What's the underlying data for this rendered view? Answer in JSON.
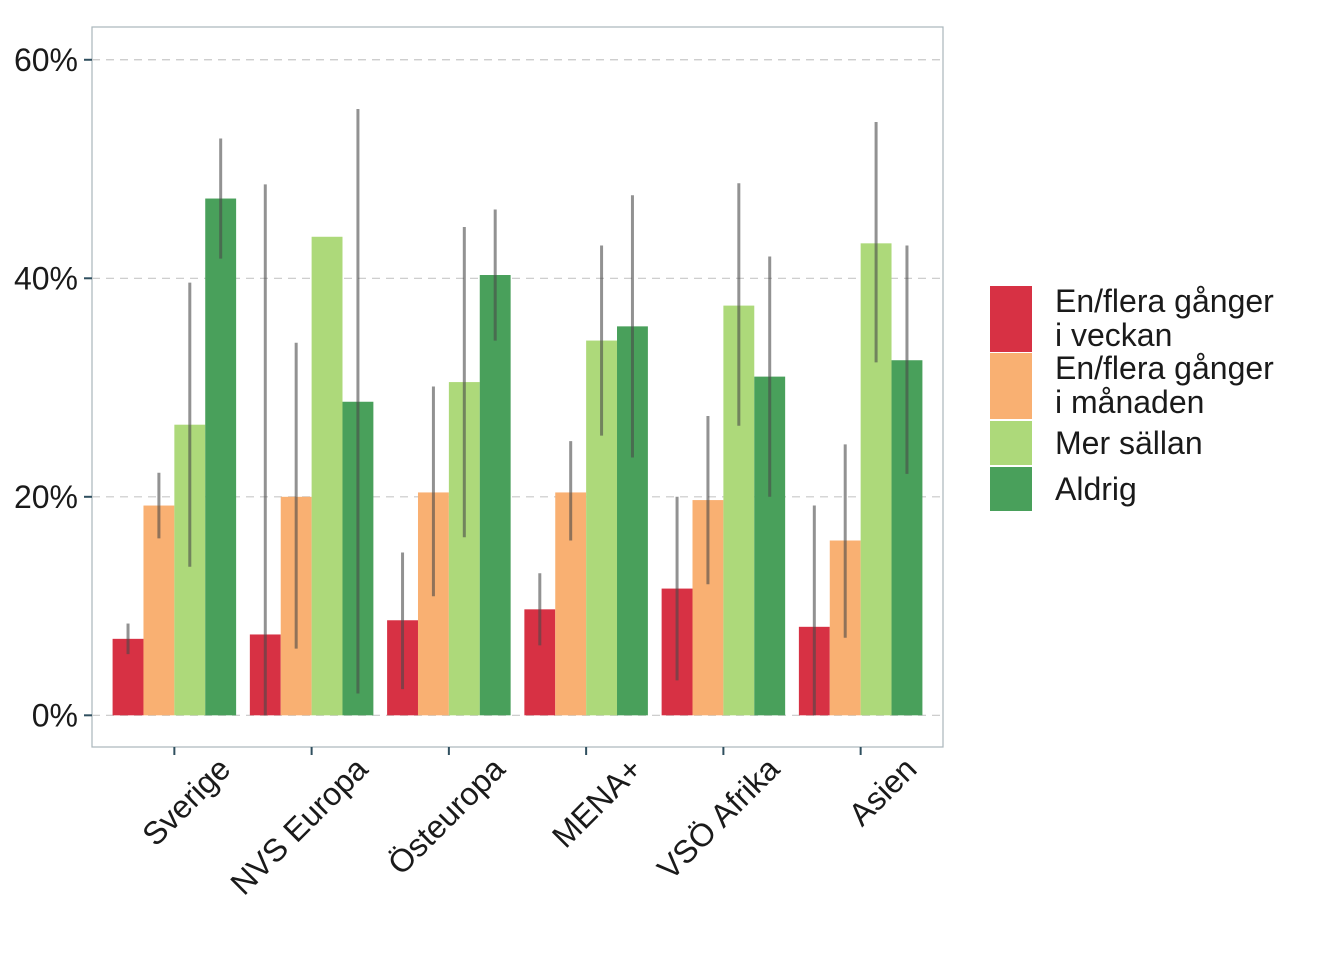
{
  "chart_data": {
    "type": "bar",
    "categories": [
      "Sverige",
      "NVS Europa",
      "Östeuropa",
      "MENA+",
      "VSÖ Afrika",
      "Asien"
    ],
    "series": [
      {
        "name": "En/flera gånger i veckan",
        "label_lines": [
          "En/flera gånger",
          "i veckan"
        ],
        "color": "#d73144",
        "values": [
          7.0,
          7.4,
          8.7,
          9.7,
          11.6,
          8.1
        ],
        "error_low": [
          5.6,
          0.0,
          2.4,
          6.4,
          3.2,
          0.0
        ],
        "error_high": [
          8.4,
          48.6,
          14.9,
          13.0,
          20.0,
          19.2
        ]
      },
      {
        "name": "En/flera gånger i månaden",
        "label_lines": [
          "En/flera gånger",
          "i månaden"
        ],
        "color": "#f9b072",
        "values": [
          19.2,
          20.0,
          20.4,
          20.4,
          19.7,
          16.0
        ],
        "error_low": [
          16.2,
          6.1,
          10.9,
          16.0,
          12.0,
          7.1
        ],
        "error_high": [
          22.2,
          34.1,
          30.1,
          25.1,
          27.4,
          24.8
        ]
      },
      {
        "name": "Mer sällan",
        "label_lines": [
          "Mer sällan"
        ],
        "color": "#add97a",
        "values": [
          26.6,
          43.8,
          30.5,
          34.3,
          37.5,
          43.2
        ],
        "error_low": [
          13.6,
          0,
          16.3,
          25.6,
          26.5,
          32.3
        ],
        "error_high": [
          39.6,
          0,
          44.7,
          43.0,
          48.7,
          54.3
        ]
      },
      {
        "name": "Aldrig",
        "label_lines": [
          "Aldrig"
        ],
        "color": "#49a05b",
        "values": [
          47.3,
          28.7,
          40.3,
          35.6,
          31.0,
          32.5
        ],
        "error_low": [
          41.8,
          2.0,
          34.3,
          23.6,
          20.0,
          22.1
        ],
        "error_high": [
          52.8,
          55.5,
          46.3,
          47.6,
          42.0,
          43.0
        ]
      }
    ],
    "y_tick_labels": [
      "0%",
      "20%",
      "40%",
      "60%"
    ],
    "y_ticks": [
      0,
      20,
      40,
      60
    ],
    "ylim": [
      -2.9,
      63
    ],
    "grid": true,
    "legend_position": "right"
  }
}
